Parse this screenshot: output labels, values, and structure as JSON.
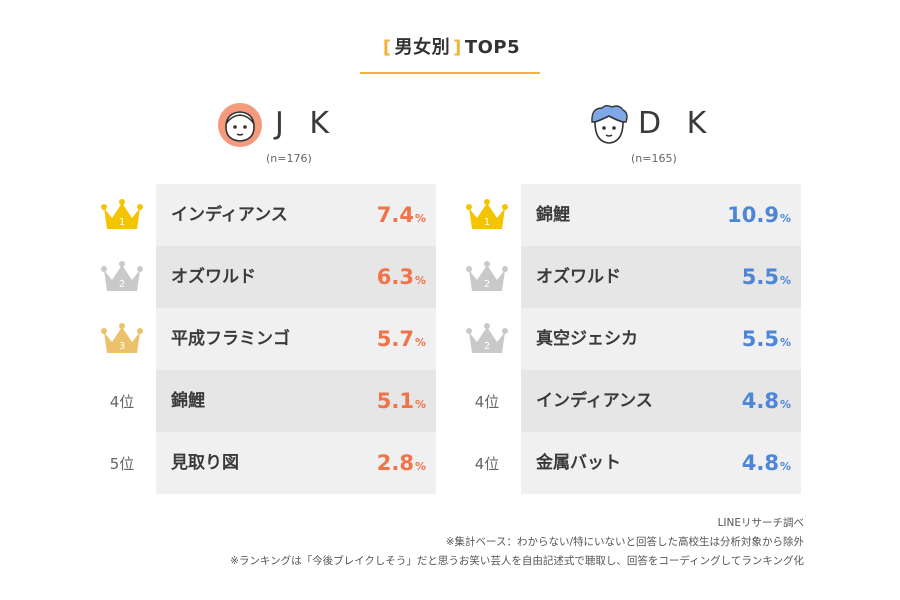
{
  "header": {
    "bracket_left": "[",
    "title": "男女別",
    "bracket_right": "]",
    "suffix": "TOP5"
  },
  "jk": {
    "name": "J K",
    "n": "(n=176)",
    "face_color": "#f59a7d",
    "rows": [
      {
        "rank": "1",
        "crown": "gold",
        "name": "インディアンス",
        "value": "7.4",
        "unit": "%"
      },
      {
        "rank": "2",
        "crown": "silver",
        "name": "オズワルド",
        "value": "6.3",
        "unit": "%"
      },
      {
        "rank": "3",
        "crown": "bronze",
        "name": "平成フラミンゴ",
        "value": "5.7",
        "unit": "%"
      },
      {
        "rank": "4位",
        "crown": "",
        "name": "錦鯉",
        "value": "5.1",
        "unit": "%"
      },
      {
        "rank": "5位",
        "crown": "",
        "name": "見取り図",
        "value": "2.8",
        "unit": "%"
      }
    ]
  },
  "dk": {
    "name": "D K",
    "n": "(n=165)",
    "face_color": "#7ea8e6",
    "rows": [
      {
        "rank": "1",
        "crown": "gold",
        "name": "錦鯉",
        "value": "10.9",
        "unit": "%"
      },
      {
        "rank": "2",
        "crown": "silver",
        "name": "オズワルド",
        "value": "5.5",
        "unit": "%"
      },
      {
        "rank": "2",
        "crown": "silver",
        "name": "真空ジェシカ",
        "value": "5.5",
        "unit": "%"
      },
      {
        "rank": "4位",
        "crown": "",
        "name": "インディアンス",
        "value": "4.8",
        "unit": "%"
      },
      {
        "rank": "4位",
        "crown": "",
        "name": "金属バット",
        "value": "4.8",
        "unit": "%"
      }
    ]
  },
  "colors": {
    "accent": "#f2b33d",
    "jk_value": "#f0734a",
    "dk_value": "#4d86d6",
    "gold": "#f5c400",
    "silver": "#c9c9c9",
    "bronze": "#ebc26a"
  },
  "footer": {
    "line1": "LINEリサーチ調べ",
    "line2": "※集計ベース：わからない/特にいないと回答した高校生は分析対象から除外",
    "line3": "※ランキングは「今後ブレイクしそう」だと思うお笑い芸人を自由記述式で聴取し、回答をコーディングしてランキング化"
  }
}
